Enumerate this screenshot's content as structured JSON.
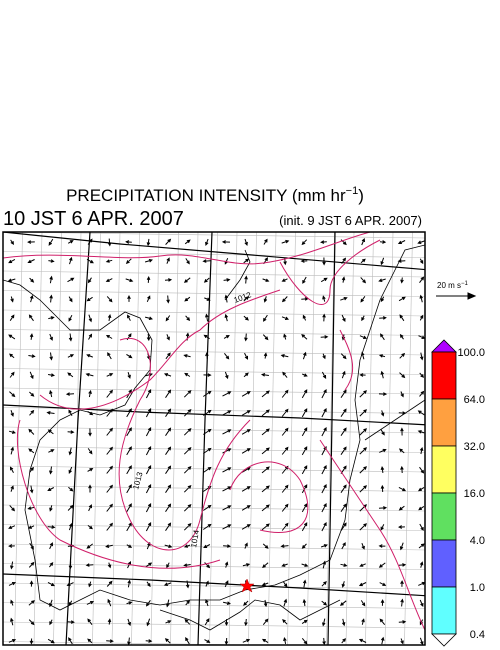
{
  "title": {
    "text": "PRECIPITATION INTENSITY (mm hr",
    "superscript": "−1",
    "close": ")"
  },
  "valid_time": "10 JST 6 APR. 2007",
  "init_time": "(init. 9 JST 6 APR. 2007)",
  "vector_legend": {
    "text": "20 m s",
    "superscript": "−1"
  },
  "contour_labels": [
    "1012",
    "1013",
    "1014"
  ],
  "colorbar": {
    "labels": [
      "100.0",
      "64.0",
      "32.0",
      "16.0",
      "4.0",
      "1.0",
      "0.4"
    ],
    "colors": [
      "#ff0000",
      "#ffa040",
      "#ffff60",
      "#60e060",
      "#6060ff",
      "#60ffff"
    ],
    "over_color": "#b000ff",
    "under_color": "#ffffff"
  }
}
